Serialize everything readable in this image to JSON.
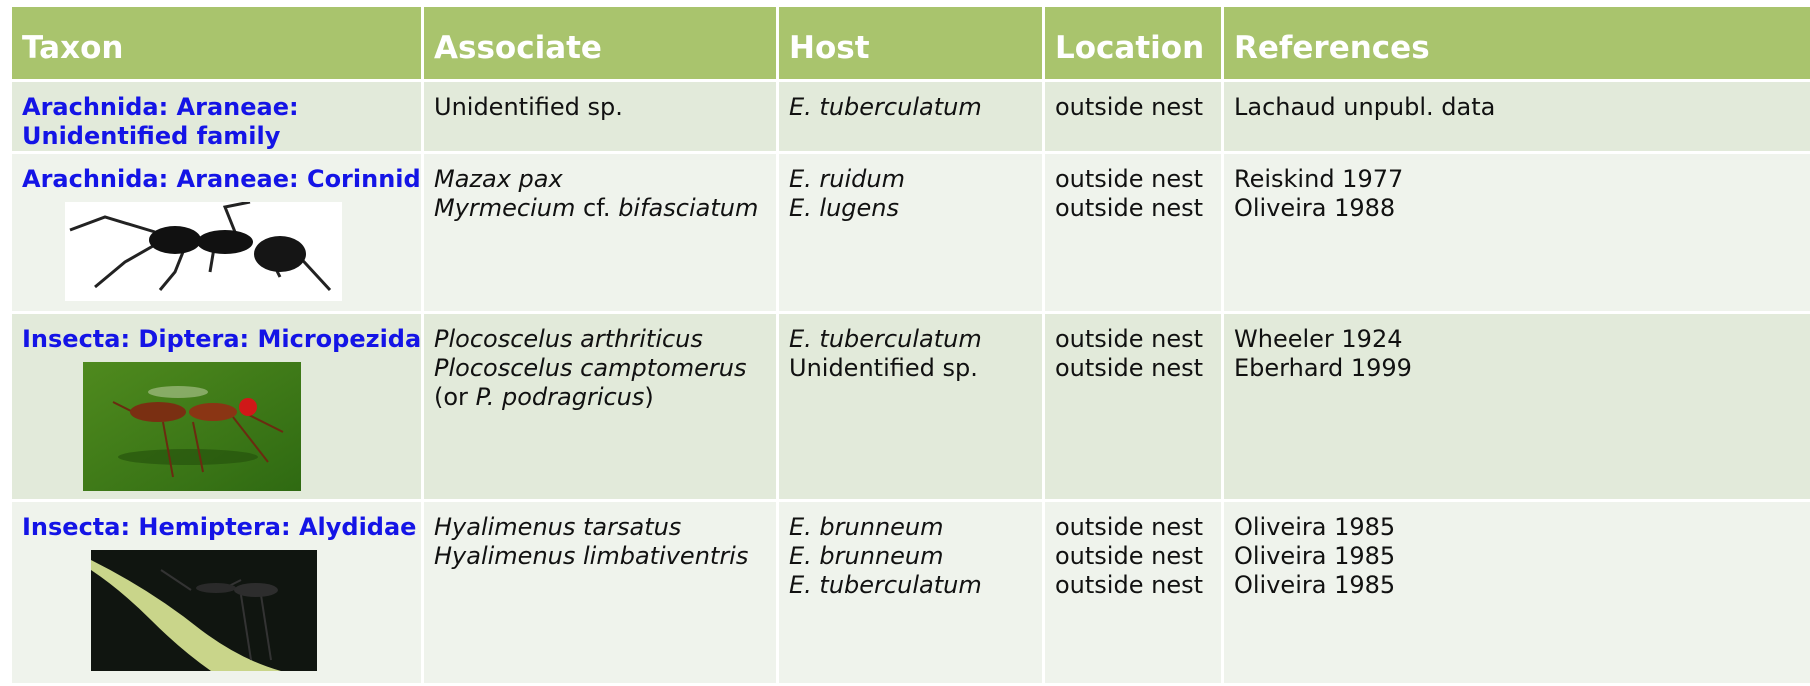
{
  "header": [
    "Taxon",
    "Associate",
    "Host",
    "Location",
    "References"
  ],
  "rows": [
    {
      "taxon": [
        "Arachnida: Araneae:",
        "Unidentified family"
      ],
      "associate": [
        [
          "Unidentified sp."
        ]
      ],
      "host": [
        "E. tuberculatum"
      ],
      "location": [
        "outside nest"
      ],
      "references": [
        "Lachaud unpubl. data"
      ]
    },
    {
      "taxon": [
        "Arachnida: Araneae: Corinnidae"
      ],
      "associate": [
        [
          "Mazax pax"
        ],
        [
          "Myrmecium",
          "cf.",
          "bifasciatum"
        ]
      ],
      "host": [
        "E. ruidum",
        "E. lugens"
      ],
      "location": [
        "outside nest",
        "outside nest"
      ],
      "references": [
        "Reiskind 1977",
        "Oliveira 1988"
      ]
    },
    {
      "taxon": [
        "Insecta: Diptera: Micropezidae"
      ],
      "associate": [
        [
          "Plocoscelus arthriticus"
        ],
        [
          "Plocoscelus camptomerus"
        ],
        [
          "(or",
          "P. podragricus",
          ")"
        ]
      ],
      "host": [
        "E. tuberculatum",
        "Unidentified sp."
      ],
      "location": [
        "outside nest",
        "outside nest"
      ],
      "references": [
        "Wheeler 1924",
        "Eberhard 1999"
      ]
    },
    {
      "taxon": [
        "Insecta: Hemiptera: Alydidae"
      ],
      "associate": [
        [
          "Hyalimenus tarsatus"
        ],
        [
          "Hyalimenus limbativentris"
        ]
      ],
      "host": [
        "E. brunneum",
        "E. brunneum",
        "E. tuberculatum"
      ],
      "location": [
        "outside nest",
        "outside nest",
        "outside nest"
      ],
      "references": [
        "Oliveira 1985",
        "Oliveira 1985",
        "Oliveira 1985"
      ]
    }
  ]
}
